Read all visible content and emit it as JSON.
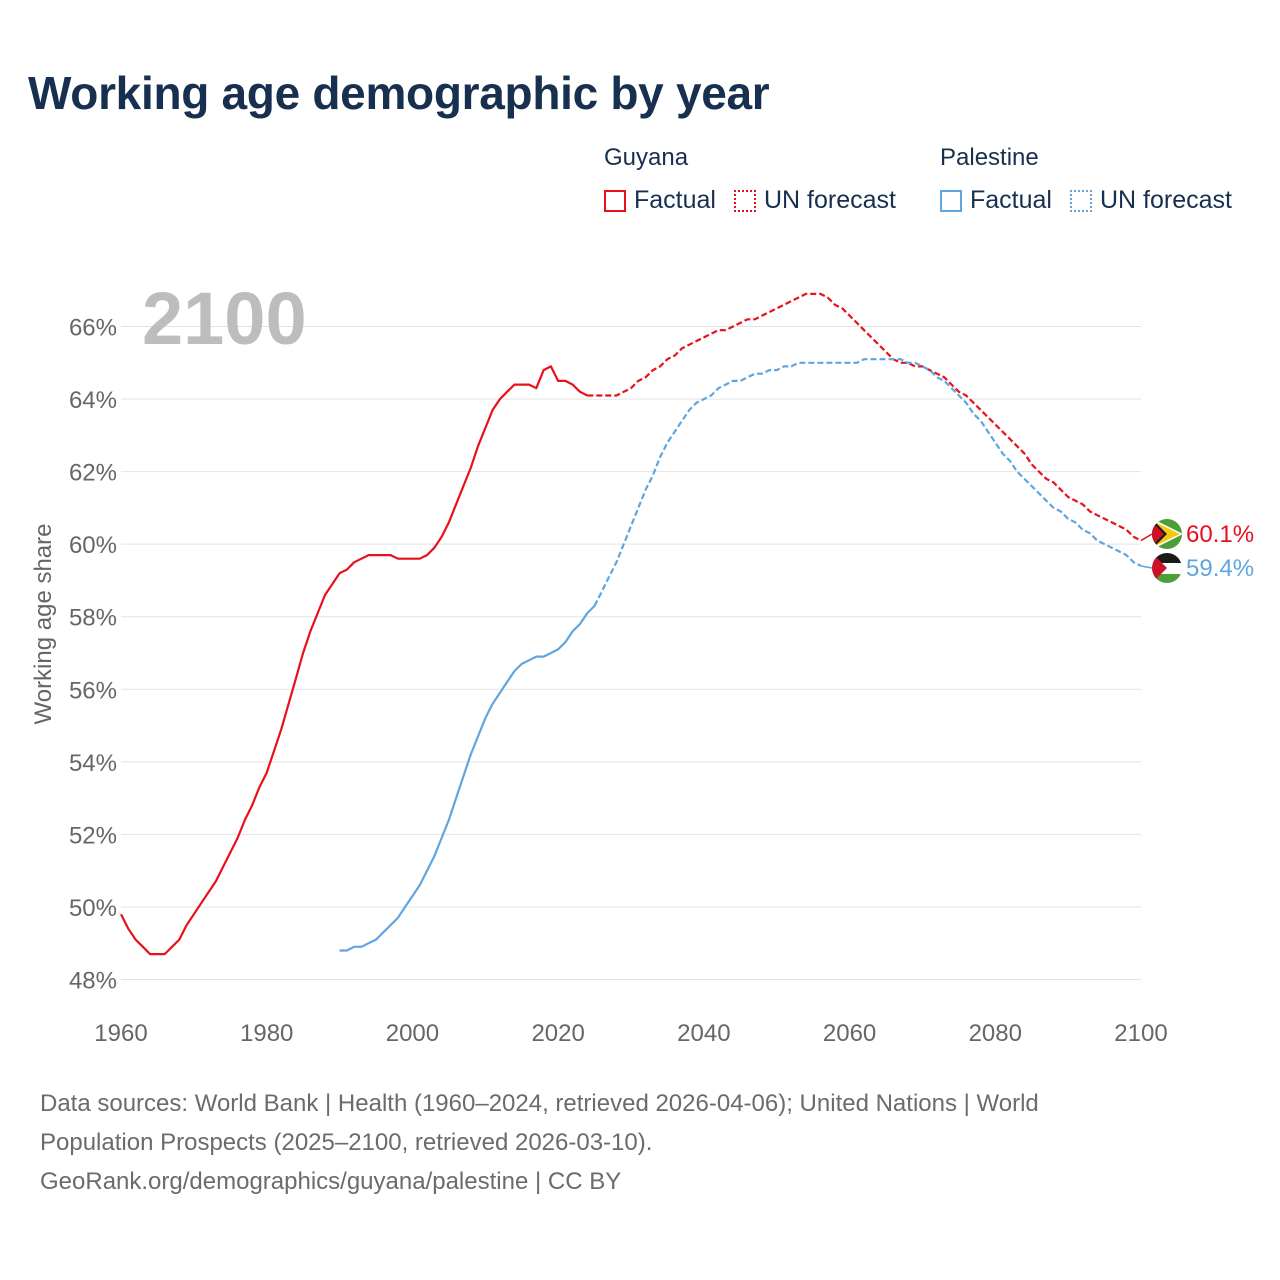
{
  "chart_data": {
    "type": "line",
    "title": "Working age demographic by year",
    "year_label": "2100",
    "ylabel": "Working age share",
    "xlabel": "",
    "xlim": [
      1960,
      2100
    ],
    "ylim": [
      47.6,
      67.2
    ],
    "x_ticks": [
      1960,
      1980,
      2000,
      2020,
      2040,
      2060,
      2080,
      2100
    ],
    "y_ticks": [
      48,
      50,
      52,
      54,
      56,
      58,
      60,
      62,
      64,
      66
    ],
    "y_tick_suffix": "%",
    "legend": {
      "groups": [
        {
          "heading": "Guyana",
          "factual": "Factual",
          "forecast": "UN forecast",
          "color": "#e8101a"
        },
        {
          "heading": "Palestine",
          "factual": "Factual",
          "forecast": "UN forecast",
          "color": "#5fa5e0"
        }
      ]
    },
    "series": [
      {
        "name": "Guyana",
        "color": "#e8101a",
        "end_label": "60.1%",
        "factual": [
          [
            1960,
            49.8
          ],
          [
            1961,
            49.4
          ],
          [
            1962,
            49.1
          ],
          [
            1963,
            48.9
          ],
          [
            1964,
            48.7
          ],
          [
            1965,
            48.7
          ],
          [
            1966,
            48.7
          ],
          [
            1967,
            48.9
          ],
          [
            1968,
            49.1
          ],
          [
            1969,
            49.5
          ],
          [
            1970,
            49.8
          ],
          [
            1971,
            50.1
          ],
          [
            1972,
            50.4
          ],
          [
            1973,
            50.7
          ],
          [
            1974,
            51.1
          ],
          [
            1975,
            51.5
          ],
          [
            1976,
            51.9
          ],
          [
            1977,
            52.4
          ],
          [
            1978,
            52.8
          ],
          [
            1979,
            53.3
          ],
          [
            1980,
            53.7
          ],
          [
            1981,
            54.3
          ],
          [
            1982,
            54.9
          ],
          [
            1983,
            55.6
          ],
          [
            1984,
            56.3
          ],
          [
            1985,
            57.0
          ],
          [
            1986,
            57.6
          ],
          [
            1987,
            58.1
          ],
          [
            1988,
            58.6
          ],
          [
            1989,
            58.9
          ],
          [
            1990,
            59.2
          ],
          [
            1991,
            59.3
          ],
          [
            1992,
            59.5
          ],
          [
            1993,
            59.6
          ],
          [
            1994,
            59.7
          ],
          [
            1995,
            59.7
          ],
          [
            1996,
            59.7
          ],
          [
            1997,
            59.7
          ],
          [
            1998,
            59.6
          ],
          [
            1999,
            59.6
          ],
          [
            2000,
            59.6
          ],
          [
            2001,
            59.6
          ],
          [
            2002,
            59.7
          ],
          [
            2003,
            59.9
          ],
          [
            2004,
            60.2
          ],
          [
            2005,
            60.6
          ],
          [
            2006,
            61.1
          ],
          [
            2007,
            61.6
          ],
          [
            2008,
            62.1
          ],
          [
            2009,
            62.7
          ],
          [
            2010,
            63.2
          ],
          [
            2011,
            63.7
          ],
          [
            2012,
            64.0
          ],
          [
            2013,
            64.2
          ],
          [
            2014,
            64.4
          ],
          [
            2015,
            64.4
          ],
          [
            2016,
            64.4
          ],
          [
            2017,
            64.3
          ],
          [
            2018,
            64.8
          ],
          [
            2019,
            64.9
          ],
          [
            2020,
            64.5
          ],
          [
            2021,
            64.5
          ],
          [
            2022,
            64.4
          ],
          [
            2023,
            64.2
          ],
          [
            2024,
            64.1
          ]
        ],
        "forecast": [
          [
            2024,
            64.1
          ],
          [
            2025,
            64.1
          ],
          [
            2026,
            64.1
          ],
          [
            2027,
            64.1
          ],
          [
            2028,
            64.1
          ],
          [
            2029,
            64.2
          ],
          [
            2030,
            64.3
          ],
          [
            2031,
            64.5
          ],
          [
            2032,
            64.6
          ],
          [
            2033,
            64.8
          ],
          [
            2034,
            64.9
          ],
          [
            2035,
            65.1
          ],
          [
            2036,
            65.2
          ],
          [
            2037,
            65.4
          ],
          [
            2038,
            65.5
          ],
          [
            2039,
            65.6
          ],
          [
            2040,
            65.7
          ],
          [
            2041,
            65.8
          ],
          [
            2042,
            65.9
          ],
          [
            2043,
            65.9
          ],
          [
            2044,
            66.0
          ],
          [
            2045,
            66.1
          ],
          [
            2046,
            66.2
          ],
          [
            2047,
            66.2
          ],
          [
            2048,
            66.3
          ],
          [
            2049,
            66.4
          ],
          [
            2050,
            66.5
          ],
          [
            2051,
            66.6
          ],
          [
            2052,
            66.7
          ],
          [
            2053,
            66.8
          ],
          [
            2054,
            66.9
          ],
          [
            2055,
            66.9
          ],
          [
            2056,
            66.9
          ],
          [
            2057,
            66.8
          ],
          [
            2058,
            66.6
          ],
          [
            2059,
            66.5
          ],
          [
            2060,
            66.3
          ],
          [
            2061,
            66.1
          ],
          [
            2062,
            65.9
          ],
          [
            2063,
            65.7
          ],
          [
            2064,
            65.5
          ],
          [
            2065,
            65.3
          ],
          [
            2066,
            65.1
          ],
          [
            2067,
            65.0
          ],
          [
            2068,
            65.0
          ],
          [
            2069,
            64.9
          ],
          [
            2070,
            64.9
          ],
          [
            2071,
            64.8
          ],
          [
            2072,
            64.7
          ],
          [
            2073,
            64.6
          ],
          [
            2074,
            64.4
          ],
          [
            2075,
            64.2
          ],
          [
            2076,
            64.1
          ],
          [
            2077,
            63.9
          ],
          [
            2078,
            63.7
          ],
          [
            2079,
            63.5
          ],
          [
            2080,
            63.3
          ],
          [
            2081,
            63.1
          ],
          [
            2082,
            62.9
          ],
          [
            2083,
            62.7
          ],
          [
            2084,
            62.5
          ],
          [
            2085,
            62.2
          ],
          [
            2086,
            62.0
          ],
          [
            2087,
            61.8
          ],
          [
            2088,
            61.7
          ],
          [
            2089,
            61.5
          ],
          [
            2090,
            61.3
          ],
          [
            2091,
            61.2
          ],
          [
            2092,
            61.1
          ],
          [
            2093,
            60.9
          ],
          [
            2094,
            60.8
          ],
          [
            2095,
            60.7
          ],
          [
            2096,
            60.6
          ],
          [
            2097,
            60.5
          ],
          [
            2098,
            60.4
          ],
          [
            2099,
            60.2
          ],
          [
            2100,
            60.1
          ]
        ]
      },
      {
        "name": "Palestine",
        "color": "#5fa5e0",
        "end_label": "59.4%",
        "factual": [
          [
            1990,
            48.8
          ],
          [
            1991,
            48.8
          ],
          [
            1992,
            48.9
          ],
          [
            1993,
            48.9
          ],
          [
            1994,
            49.0
          ],
          [
            1995,
            49.1
          ],
          [
            1996,
            49.3
          ],
          [
            1997,
            49.5
          ],
          [
            1998,
            49.7
          ],
          [
            1999,
            50.0
          ],
          [
            2000,
            50.3
          ],
          [
            2001,
            50.6
          ],
          [
            2002,
            51.0
          ],
          [
            2003,
            51.4
          ],
          [
            2004,
            51.9
          ],
          [
            2005,
            52.4
          ],
          [
            2006,
            53.0
          ],
          [
            2007,
            53.6
          ],
          [
            2008,
            54.2
          ],
          [
            2009,
            54.7
          ],
          [
            2010,
            55.2
          ],
          [
            2011,
            55.6
          ],
          [
            2012,
            55.9
          ],
          [
            2013,
            56.2
          ],
          [
            2014,
            56.5
          ],
          [
            2015,
            56.7
          ],
          [
            2016,
            56.8
          ],
          [
            2017,
            56.9
          ],
          [
            2018,
            56.9
          ],
          [
            2019,
            57.0
          ],
          [
            2020,
            57.1
          ],
          [
            2021,
            57.3
          ],
          [
            2022,
            57.6
          ],
          [
            2023,
            57.8
          ],
          [
            2024,
            58.1
          ],
          [
            2025,
            58.3
          ]
        ],
        "forecast": [
          [
            2025,
            58.3
          ],
          [
            2026,
            58.7
          ],
          [
            2027,
            59.1
          ],
          [
            2028,
            59.5
          ],
          [
            2029,
            60.0
          ],
          [
            2030,
            60.5
          ],
          [
            2031,
            61.0
          ],
          [
            2032,
            61.5
          ],
          [
            2033,
            61.9
          ],
          [
            2034,
            62.4
          ],
          [
            2035,
            62.8
          ],
          [
            2036,
            63.1
          ],
          [
            2037,
            63.4
          ],
          [
            2038,
            63.7
          ],
          [
            2039,
            63.9
          ],
          [
            2040,
            64.0
          ],
          [
            2041,
            64.1
          ],
          [
            2042,
            64.3
          ],
          [
            2043,
            64.4
          ],
          [
            2044,
            64.5
          ],
          [
            2045,
            64.5
          ],
          [
            2046,
            64.6
          ],
          [
            2047,
            64.7
          ],
          [
            2048,
            64.7
          ],
          [
            2049,
            64.8
          ],
          [
            2050,
            64.8
          ],
          [
            2051,
            64.9
          ],
          [
            2052,
            64.9
          ],
          [
            2053,
            65.0
          ],
          [
            2054,
            65.0
          ],
          [
            2055,
            65.0
          ],
          [
            2056,
            65.0
          ],
          [
            2057,
            65.0
          ],
          [
            2058,
            65.0
          ],
          [
            2059,
            65.0
          ],
          [
            2060,
            65.0
          ],
          [
            2061,
            65.0
          ],
          [
            2062,
            65.1
          ],
          [
            2063,
            65.1
          ],
          [
            2064,
            65.1
          ],
          [
            2065,
            65.1
          ],
          [
            2066,
            65.1
          ],
          [
            2067,
            65.1
          ],
          [
            2068,
            65.0
          ],
          [
            2069,
            65.0
          ],
          [
            2070,
            64.9
          ],
          [
            2071,
            64.8
          ],
          [
            2072,
            64.6
          ],
          [
            2073,
            64.5
          ],
          [
            2074,
            64.3
          ],
          [
            2075,
            64.1
          ],
          [
            2076,
            63.9
          ],
          [
            2077,
            63.6
          ],
          [
            2078,
            63.4
          ],
          [
            2079,
            63.1
          ],
          [
            2080,
            62.8
          ],
          [
            2081,
            62.5
          ],
          [
            2082,
            62.3
          ],
          [
            2083,
            62.0
          ],
          [
            2084,
            61.8
          ],
          [
            2085,
            61.6
          ],
          [
            2086,
            61.4
          ],
          [
            2087,
            61.2
          ],
          [
            2088,
            61.0
          ],
          [
            2089,
            60.9
          ],
          [
            2090,
            60.7
          ],
          [
            2091,
            60.6
          ],
          [
            2092,
            60.4
          ],
          [
            2093,
            60.3
          ],
          [
            2094,
            60.1
          ],
          [
            2095,
            60.0
          ],
          [
            2096,
            59.9
          ],
          [
            2097,
            59.8
          ],
          [
            2098,
            59.7
          ],
          [
            2099,
            59.5
          ],
          [
            2100,
            59.4
          ]
        ]
      }
    ]
  },
  "footer": {
    "line1": "Data sources: World Bank | Health (1960–2024, retrieved 2026-04-06); United Nations | World",
    "line2": "Population Prospects (2025–2100, retrieved 2026-03-10).",
    "line3": "GeoRank.org/demographics/guyana/palestine | CC BY"
  }
}
